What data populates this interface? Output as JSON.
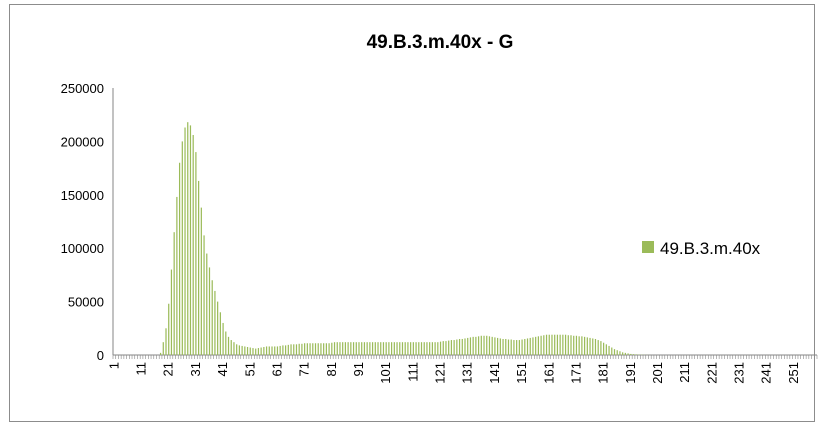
{
  "chart_data": {
    "type": "bar",
    "title": "49.B.3.m.40x - G",
    "xlabel": "",
    "ylabel": "",
    "ylim": [
      0,
      250000
    ],
    "yticks": [
      "250000",
      "200000",
      "150000",
      "100000",
      "50000",
      "0"
    ],
    "xtick_labels": [
      "1",
      "11",
      "21",
      "31",
      "41",
      "51",
      "61",
      "71",
      "81",
      "91",
      "101",
      "111",
      "121",
      "131",
      "141",
      "151",
      "161",
      "171",
      "181",
      "191",
      "201",
      "211",
      "221",
      "231",
      "241",
      "251"
    ],
    "legend_position": "right",
    "series": [
      {
        "name": "49.B.3.m.40x",
        "color": "#9bbb59",
        "x_start": 1,
        "values": [
          0,
          0,
          0,
          0,
          0,
          0,
          0,
          0,
          0,
          0,
          0,
          0,
          0,
          0,
          0,
          0,
          0,
          2000,
          12000,
          25000,
          48000,
          80000,
          115000,
          148000,
          180000,
          200000,
          213000,
          218000,
          215000,
          206000,
          190000,
          163000,
          138000,
          112000,
          95000,
          82000,
          70000,
          60000,
          50000,
          40000,
          30000,
          22000,
          17000,
          14000,
          12000,
          10000,
          9000,
          8500,
          8000,
          7500,
          7000,
          6500,
          6000,
          6500,
          7000,
          7500,
          8000,
          8000,
          8000,
          8000,
          8000,
          8500,
          9000,
          9000,
          9500,
          10000,
          10000,
          10000,
          10500,
          10500,
          11000,
          11000,
          11000,
          11000,
          11000,
          11000,
          11000,
          11000,
          11000,
          11000,
          11500,
          12000,
          12000,
          12000,
          12000,
          12000,
          12000,
          12000,
          12000,
          12000,
          12000,
          12000,
          12000,
          12000,
          12000,
          12000,
          12000,
          12000,
          12000,
          12000,
          12000,
          12000,
          12000,
          12000,
          12000,
          12000,
          12000,
          12000,
          12000,
          12000,
          12000,
          12000,
          12000,
          12000,
          12000,
          12000,
          12000,
          12000,
          12000,
          12000,
          12500,
          13000,
          13000,
          13500,
          14000,
          14000,
          14500,
          15000,
          15000,
          15500,
          16000,
          16500,
          17000,
          17000,
          17500,
          18000,
          18000,
          18000,
          17500,
          17000,
          16500,
          16000,
          15500,
          15000,
          15000,
          14500,
          14500,
          14000,
          14000,
          14000,
          14500,
          15000,
          15500,
          16000,
          16500,
          17000,
          17500,
          18000,
          18500,
          19000,
          19000,
          19000,
          19000,
          19000,
          19000,
          19000,
          19000,
          18500,
          18500,
          18000,
          18000,
          17500,
          17500,
          17000,
          16500,
          16000,
          15500,
          15000,
          14000,
          13000,
          11500,
          10000,
          8500,
          7000,
          5500,
          4500,
          3500,
          2500,
          2000,
          1500,
          1000,
          800,
          600,
          400,
          300,
          200,
          100,
          50,
          0,
          0,
          0,
          0,
          0,
          0,
          0,
          0,
          0,
          0,
          0,
          0,
          0,
          0,
          0,
          0,
          0,
          0,
          0,
          0,
          0,
          0,
          0,
          0,
          0,
          0,
          0,
          0,
          0,
          0,
          0,
          0,
          0,
          0,
          0,
          0,
          0,
          0,
          0,
          0,
          0,
          0,
          0,
          0,
          0,
          0,
          0,
          0,
          0,
          0,
          0,
          0,
          0,
          0,
          0,
          0,
          0,
          0,
          0,
          0,
          0
        ]
      }
    ]
  }
}
